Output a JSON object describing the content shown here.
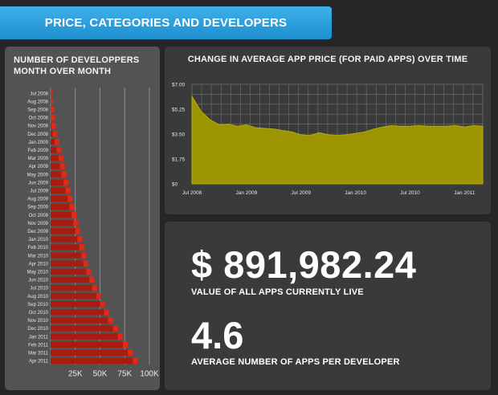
{
  "header": {
    "title": "PRICE, CATEGORIES AND DEVELOPERS"
  },
  "developers_chart": {
    "title": "NUMBER OF DEVELOPPERS\nMONTH OVER MONTH",
    "chart_data": {
      "type": "bar",
      "orientation": "horizontal",
      "categories": [
        "Jul 2008",
        "Aug 2008",
        "Sep 2008",
        "Oct 2008",
        "Nov 2008",
        "Dec 2008",
        "Jan 2009",
        "Feb 2009",
        "Mar 2009",
        "Apr 2009",
        "May 2009",
        "Jun 2009",
        "Jul 2009",
        "Aug 2009",
        "Sep 2009",
        "Oct 2009",
        "Nov 2009",
        "Dec 2009",
        "Jan 2010",
        "Feb 2010",
        "Mar 2010",
        "Apr 2010",
        "May 2010",
        "Jun 2010",
        "Jul 2010",
        "Aug 2010",
        "Sep 2010",
        "Oct 2010",
        "Nov 2010",
        "Dec 2010",
        "Jan 2011",
        "Feb 2011",
        "Mar 2011",
        "Apr 2011"
      ],
      "values": [
        1500,
        2500,
        3500,
        4500,
        5500,
        7000,
        9000,
        11000,
        13000,
        14500,
        16000,
        18000,
        20000,
        22000,
        24000,
        26000,
        28000,
        30000,
        32000,
        34000,
        36000,
        38000,
        41000,
        44000,
        47000,
        51000,
        55000,
        59000,
        63000,
        68000,
        73000,
        78000,
        83000,
        88000
      ],
      "xticks": [
        "25K",
        "50K",
        "75K",
        "100K"
      ],
      "xlim": [
        0,
        100000
      ],
      "colors": {
        "bar": "#a81c10",
        "bar_tip": "#e02a17",
        "panel": "#535353"
      }
    }
  },
  "price_chart": {
    "title": "CHANGE IN AVERAGE APP PRICE (FOR PAID APPS) OVER TIME",
    "chart_data": {
      "type": "area",
      "x": [
        "Jul 2008",
        "Aug 2008",
        "Sep 2008",
        "Oct 2008",
        "Nov 2008",
        "Dec 2008",
        "Jan 2009",
        "Feb 2009",
        "Mar 2009",
        "Apr 2009",
        "May 2009",
        "Jun 2009",
        "Jul 2009",
        "Aug 2009",
        "Sep 2009",
        "Oct 2009",
        "Nov 2009",
        "Dec 2009",
        "Jan 2010",
        "Feb 2010",
        "Mar 2010",
        "Apr 2010",
        "May 2010",
        "Jun 2010",
        "Jul 2010",
        "Aug 2010",
        "Sep 2010",
        "Oct 2010",
        "Nov 2010",
        "Dec 2010",
        "Jan 2011",
        "Feb 2011",
        "Mar 2011"
      ],
      "values": [
        6.15,
        5.1,
        4.5,
        4.15,
        4.2,
        4.05,
        4.15,
        3.95,
        3.9,
        3.85,
        3.75,
        3.65,
        3.45,
        3.4,
        3.6,
        3.45,
        3.4,
        3.45,
        3.55,
        3.65,
        3.85,
        4.0,
        4.1,
        4.05,
        4.05,
        4.1,
        4.05,
        4.05,
        4.05,
        4.1,
        4.0,
        4.1,
        4.05
      ],
      "yticks": [
        "$0",
        "$1.75",
        "$3.50",
        "$5.25",
        "$7.00"
      ],
      "ylim": [
        0,
        7
      ],
      "xticks": [
        "Jul 2008",
        "Jan 2009",
        "Jul 2009",
        "Jan 2010",
        "Jul 2010",
        "Jan 2011"
      ],
      "colors": {
        "fill": "#9c9400",
        "line": "#b5ad07",
        "grid": "#707070"
      }
    }
  },
  "stats": {
    "value_all_apps": "$ 891,982.24",
    "value_all_apps_label": "VALUE OF ALL APPS CURRENTLY LIVE",
    "apps_per_developer": "4.6",
    "apps_per_developer_label": "AVERAGE NUMBER OF APPS PER DEVELOPER"
  }
}
